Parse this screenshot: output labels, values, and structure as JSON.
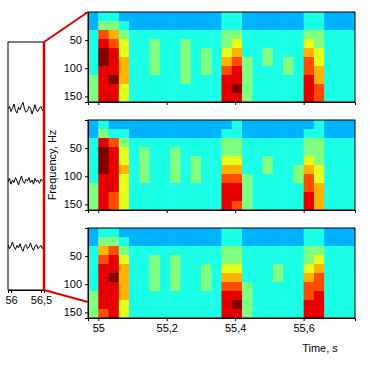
{
  "chart_data": [
    {
      "type": "line",
      "x": [
        55.95,
        55.975,
        56,
        56.025,
        56.05,
        56.075,
        56.1,
        56.125,
        56.15,
        56.175,
        56.2,
        56.225,
        56.25,
        56.275,
        56.3,
        56.325,
        56.35,
        56.375,
        56.4,
        56.425,
        56.45,
        56.475,
        56.5,
        56.525,
        56.55
      ],
      "series": [
        {
          "color": "#000000",
          "values": [
            2.19,
            2.22,
            2.16,
            2.2,
            2.25,
            2.17,
            2.14,
            2.21,
            2.18,
            2.23,
            2.27,
            2.19,
            2.15,
            2.17,
            2.22,
            2.2,
            2.13,
            2.18,
            2.24,
            2.17,
            2.16,
            2.2,
            2.22,
            2.17,
            2.19
          ]
        },
        {
          "color": "#000000",
          "values": [
            1.31,
            1.35,
            1.28,
            1.33,
            1.3,
            1.36,
            1.32,
            1.27,
            1.33,
            1.38,
            1.31,
            1.29,
            1.34,
            1.32,
            1.36,
            1.3,
            1.33,
            1.28,
            1.35,
            1.31,
            1.33,
            1.29,
            1.34,
            1.32,
            1.33
          ]
        },
        {
          "color": "#000000",
          "values": [
            0.55,
            0.5,
            0.53,
            0.58,
            0.52,
            0.49,
            0.54,
            0.51,
            0.56,
            0.5,
            0.47,
            0.53,
            0.55,
            0.5,
            0.52,
            0.57,
            0.51,
            0.48,
            0.53,
            0.55,
            0.5,
            0.52,
            0.54,
            0.5,
            0.53
          ]
        }
      ],
      "xlim": [
        55.95,
        56.55
      ],
      "ylim": [
        0,
        3
      ],
      "xticks": [
        56,
        {
          "value": 56.5,
          "label": "56,5"
        }
      ],
      "tick_labels": "x"
    },
    {
      "type": "heatmap",
      "x": [
        54.985,
        55.015,
        55.045,
        55.075,
        55.105,
        55.135,
        55.165,
        55.195,
        55.225,
        55.255,
        55.285,
        55.315,
        55.345,
        55.375,
        55.405,
        55.435,
        55.465,
        55.495,
        55.525,
        55.555,
        55.585,
        55.615,
        55.645,
        55.675,
        55.705,
        55.735
      ],
      "y": [
        8,
        24,
        40,
        56,
        72,
        88,
        104,
        120,
        136,
        152
      ],
      "cells": [
        [
          3,
          4,
          4,
          3,
          3,
          3,
          3,
          3,
          3,
          3,
          3,
          3,
          3,
          4,
          4,
          3,
          3,
          3,
          3,
          3,
          3,
          4,
          4,
          3,
          3,
          3
        ],
        [
          3,
          5,
          5,
          4,
          3,
          3,
          3,
          3,
          3,
          3,
          3,
          3,
          3,
          4,
          4,
          3,
          3,
          3,
          3,
          3,
          3,
          4,
          4,
          3,
          3,
          3
        ],
        [
          4,
          8,
          7,
          5,
          4,
          4,
          4,
          4,
          4,
          4,
          4,
          4,
          4,
          5,
          5,
          4,
          4,
          4,
          4,
          4,
          4,
          5,
          5,
          4,
          4,
          4
        ],
        [
          4,
          9,
          8,
          6,
          4,
          4,
          5,
          4,
          4,
          5,
          4,
          4,
          4,
          5,
          6,
          4,
          4,
          4,
          4,
          4,
          4,
          6,
          5,
          4,
          4,
          4
        ],
        [
          4,
          10,
          9,
          6,
          4,
          4,
          5,
          4,
          4,
          5,
          4,
          5,
          4,
          6,
          7,
          4,
          4,
          5,
          4,
          4,
          4,
          7,
          6,
          4,
          4,
          4
        ],
        [
          4,
          10,
          9,
          7,
          4,
          4,
          5,
          4,
          4,
          5,
          4,
          5,
          4,
          7,
          8,
          5,
          4,
          5,
          4,
          5,
          4,
          8,
          6,
          4,
          4,
          4
        ],
        [
          4,
          9,
          9,
          7,
          4,
          4,
          5,
          4,
          4,
          5,
          4,
          5,
          4,
          8,
          9,
          5,
          4,
          4,
          4,
          5,
          4,
          8,
          7,
          4,
          4,
          4
        ],
        [
          5,
          9,
          10,
          7,
          4,
          4,
          4,
          4,
          4,
          5,
          4,
          4,
          4,
          9,
          9,
          5,
          4,
          4,
          4,
          4,
          4,
          9,
          7,
          4,
          4,
          4
        ],
        [
          5,
          9,
          9,
          6,
          4,
          4,
          4,
          4,
          4,
          4,
          4,
          4,
          4,
          9,
          10,
          5,
          4,
          4,
          4,
          4,
          4,
          9,
          8,
          4,
          4,
          4
        ],
        [
          5,
          9,
          9,
          6,
          4,
          4,
          4,
          4,
          4,
          4,
          4,
          4,
          4,
          9,
          9,
          5,
          4,
          4,
          4,
          4,
          4,
          9,
          8,
          4,
          4,
          4
        ]
      ],
      "zlim": [
        0,
        10
      ],
      "xlim": [
        54.97,
        55.75
      ],
      "ylim": [
        0,
        160
      ],
      "xticks": [
        55,
        {
          "value": 55.2,
          "label": "55,2"
        },
        {
          "value": 55.4,
          "label": "55,4"
        },
        {
          "value": 55.6,
          "label": "55,6"
        }
      ],
      "yticks": [
        50,
        100,
        150
      ],
      "tick_labels": "y"
    },
    {
      "type": "heatmap",
      "x": [
        54.985,
        55.015,
        55.045,
        55.075,
        55.105,
        55.135,
        55.165,
        55.195,
        55.225,
        55.255,
        55.285,
        55.315,
        55.345,
        55.375,
        55.405,
        55.435,
        55.465,
        55.495,
        55.525,
        55.555,
        55.585,
        55.615,
        55.645,
        55.675,
        55.705,
        55.735
      ],
      "y": [
        8,
        24,
        40,
        56,
        72,
        88,
        104,
        120,
        136,
        152
      ],
      "cells": [
        [
          3,
          4,
          3,
          3,
          3,
          3,
          3,
          3,
          3,
          3,
          3,
          3,
          3,
          3,
          4,
          3,
          3,
          3,
          3,
          3,
          3,
          3,
          4,
          3,
          3,
          3
        ],
        [
          3,
          5,
          4,
          4,
          3,
          3,
          3,
          3,
          3,
          3,
          3,
          3,
          3,
          4,
          4,
          3,
          3,
          3,
          3,
          3,
          3,
          4,
          4,
          3,
          3,
          3
        ],
        [
          4,
          9,
          8,
          5,
          4,
          4,
          4,
          4,
          4,
          4,
          4,
          4,
          4,
          5,
          5,
          4,
          4,
          4,
          4,
          4,
          4,
          5,
          5,
          4,
          4,
          4
        ],
        [
          4,
          10,
          9,
          6,
          4,
          5,
          4,
          4,
          5,
          4,
          4,
          4,
          4,
          5,
          5,
          4,
          4,
          4,
          4,
          4,
          4,
          5,
          5,
          4,
          4,
          4
        ],
        [
          4,
          10,
          9,
          6,
          4,
          5,
          4,
          4,
          5,
          4,
          5,
          4,
          4,
          6,
          6,
          4,
          4,
          5,
          4,
          4,
          4,
          6,
          5,
          4,
          4,
          4
        ],
        [
          4,
          10,
          9,
          7,
          4,
          5,
          4,
          4,
          5,
          4,
          5,
          4,
          4,
          7,
          7,
          4,
          4,
          5,
          4,
          4,
          5,
          7,
          6,
          4,
          4,
          4
        ],
        [
          4,
          9,
          9,
          6,
          4,
          5,
          4,
          4,
          5,
          4,
          5,
          4,
          4,
          8,
          8,
          5,
          4,
          4,
          4,
          4,
          5,
          8,
          6,
          4,
          4,
          4
        ],
        [
          5,
          9,
          9,
          6,
          4,
          4,
          4,
          4,
          4,
          4,
          4,
          4,
          4,
          9,
          9,
          5,
          4,
          4,
          4,
          4,
          4,
          8,
          7,
          4,
          4,
          4
        ],
        [
          5,
          9,
          8,
          6,
          4,
          4,
          4,
          4,
          4,
          4,
          4,
          4,
          4,
          9,
          9,
          5,
          4,
          4,
          4,
          4,
          4,
          9,
          7,
          4,
          4,
          4
        ],
        [
          5,
          9,
          8,
          6,
          4,
          4,
          4,
          4,
          4,
          4,
          4,
          4,
          4,
          9,
          8,
          5,
          4,
          4,
          4,
          4,
          4,
          9,
          7,
          4,
          4,
          4
        ]
      ],
      "zlim": [
        0,
        10
      ],
      "xlim": [
        54.97,
        55.75
      ],
      "ylim": [
        0,
        160
      ],
      "xticks": [
        55,
        {
          "value": 55.2,
          "label": "55,2"
        },
        {
          "value": 55.4,
          "label": "55,4"
        },
        {
          "value": 55.6,
          "label": "55,6"
        }
      ],
      "yticks": [
        50,
        100,
        150
      ],
      "y_label": "Frequency, Hz",
      "tick_labels": "y"
    },
    {
      "type": "heatmap",
      "x": [
        54.985,
        55.015,
        55.045,
        55.075,
        55.105,
        55.135,
        55.165,
        55.195,
        55.225,
        55.255,
        55.285,
        55.315,
        55.345,
        55.375,
        55.405,
        55.435,
        55.465,
        55.495,
        55.525,
        55.555,
        55.585,
        55.615,
        55.645,
        55.675,
        55.705,
        55.735
      ],
      "y": [
        8,
        24,
        40,
        56,
        72,
        88,
        104,
        120,
        136,
        152
      ],
      "cells": [
        [
          3,
          4,
          4,
          3,
          3,
          3,
          3,
          3,
          3,
          3,
          3,
          3,
          3,
          4,
          4,
          3,
          3,
          3,
          3,
          3,
          3,
          4,
          4,
          3,
          3,
          3
        ],
        [
          3,
          5,
          5,
          4,
          3,
          3,
          3,
          3,
          3,
          3,
          3,
          3,
          3,
          4,
          4,
          3,
          3,
          3,
          3,
          3,
          3,
          4,
          4,
          3,
          3,
          3
        ],
        [
          4,
          7,
          8,
          5,
          4,
          4,
          4,
          4,
          4,
          4,
          4,
          4,
          4,
          5,
          5,
          4,
          4,
          4,
          4,
          4,
          4,
          5,
          5,
          4,
          4,
          4
        ],
        [
          4,
          8,
          9,
          6,
          4,
          4,
          5,
          4,
          5,
          4,
          4,
          4,
          4,
          5,
          5,
          4,
          4,
          4,
          4,
          4,
          4,
          5,
          6,
          4,
          4,
          4
        ],
        [
          4,
          9,
          9,
          7,
          4,
          4,
          5,
          4,
          5,
          4,
          4,
          5,
          4,
          6,
          6,
          4,
          4,
          4,
          5,
          4,
          4,
          6,
          7,
          4,
          4,
          4
        ],
        [
          4,
          9,
          10,
          7,
          4,
          4,
          5,
          4,
          5,
          4,
          4,
          5,
          4,
          7,
          7,
          4,
          4,
          4,
          5,
          4,
          4,
          7,
          8,
          4,
          4,
          4
        ],
        [
          4,
          9,
          9,
          7,
          4,
          4,
          5,
          4,
          5,
          4,
          4,
          5,
          4,
          8,
          8,
          5,
          4,
          4,
          4,
          4,
          4,
          8,
          8,
          4,
          4,
          4
        ],
        [
          5,
          9,
          9,
          7,
          4,
          4,
          4,
          4,
          4,
          4,
          4,
          4,
          4,
          9,
          9,
          5,
          4,
          4,
          4,
          4,
          4,
          8,
          9,
          4,
          4,
          4
        ],
        [
          5,
          9,
          9,
          6,
          4,
          4,
          4,
          4,
          4,
          4,
          4,
          4,
          4,
          9,
          10,
          5,
          4,
          4,
          4,
          4,
          4,
          9,
          9,
          4,
          4,
          4
        ],
        [
          5,
          8,
          9,
          6,
          4,
          4,
          4,
          4,
          4,
          4,
          4,
          4,
          4,
          9,
          9,
          5,
          4,
          4,
          4,
          4,
          4,
          9,
          9,
          4,
          4,
          4
        ]
      ],
      "zlim": [
        0,
        10
      ],
      "xlim": [
        54.97,
        55.75
      ],
      "ylim": [
        0,
        160
      ],
      "xticks": [
        55,
        {
          "value": 55.2,
          "label": "55,2"
        },
        {
          "value": 55.4,
          "label": "55,4"
        },
        {
          "value": 55.6,
          "label": "55,6"
        }
      ],
      "yticks": [
        50,
        100,
        150
      ],
      "x_label": "Time, s",
      "tick_labels": true
    }
  ]
}
